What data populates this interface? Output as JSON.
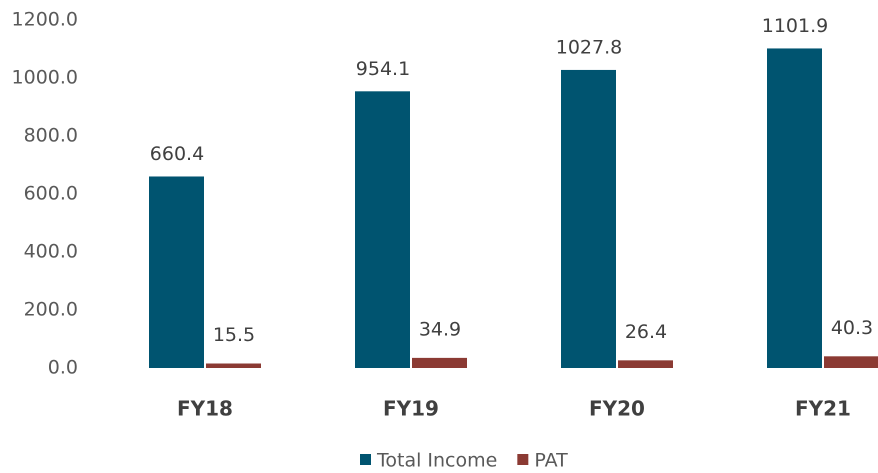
{
  "chart_data": {
    "type": "bar",
    "categories": [
      "FY18",
      "FY19",
      "FY20",
      "FY21"
    ],
    "series": [
      {
        "name": "Total Income",
        "color": "#005470",
        "values": [
          660.4,
          954.1,
          1027.8,
          1101.9
        ]
      },
      {
        "name": "PAT",
        "color": "#8b3a33",
        "values": [
          15.5,
          34.9,
          26.4,
          40.3
        ]
      }
    ],
    "ylim": [
      0,
      1200
    ],
    "yticks": [
      {
        "value": 0,
        "label": "0.0"
      },
      {
        "value": 200,
        "label": "200.0"
      },
      {
        "value": 400,
        "label": "400.0"
      },
      {
        "value": 600,
        "label": "600.0"
      },
      {
        "value": 800,
        "label": "800.0"
      },
      {
        "value": 1000,
        "label": "1000.0"
      },
      {
        "value": 1200,
        "label": "1200.0"
      }
    ],
    "grid": false,
    "legend": "bottom"
  }
}
